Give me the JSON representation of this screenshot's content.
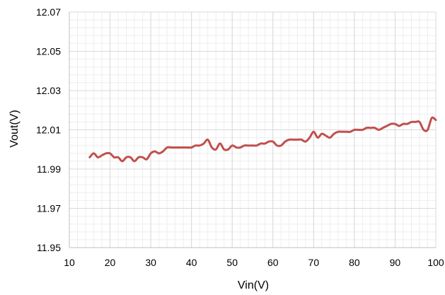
{
  "chart_data": {
    "type": "line",
    "title": "",
    "xlabel": "Vin(V)",
    "ylabel": "Vout(V)",
    "xlim": [
      10,
      100
    ],
    "ylim": [
      11.95,
      12.07
    ],
    "xticks": [
      10,
      20,
      30,
      40,
      50,
      60,
      70,
      80,
      90,
      100
    ],
    "yticks": [
      "11.95",
      "11.97",
      "11.99",
      "12.01",
      "12.03",
      "12.05",
      "12.07"
    ],
    "grid": {
      "major": true,
      "minor": true
    },
    "colors": {
      "line": "#c0504d",
      "major_grid": "#d9d9d9",
      "minor_grid": "#eeeeee",
      "axis": "#bfbfbf"
    },
    "series": [
      {
        "x": [
          15,
          16,
          17,
          18,
          19,
          20,
          21,
          22,
          23,
          24,
          25,
          26,
          27,
          28,
          29,
          30,
          31,
          32,
          33,
          34,
          35,
          36,
          37,
          38,
          39,
          40,
          41,
          42,
          43,
          44,
          45,
          46,
          47,
          48,
          49,
          50,
          51,
          52,
          53,
          54,
          55,
          56,
          57,
          58,
          59,
          60,
          61,
          62,
          63,
          64,
          65,
          66,
          67,
          68,
          69,
          70,
          71,
          72,
          73,
          74,
          75,
          76,
          77,
          78,
          79,
          80,
          81,
          82,
          83,
          84,
          85,
          86,
          87,
          88,
          89,
          90,
          91,
          92,
          93,
          94,
          95,
          96,
          97,
          98,
          99,
          100
        ],
        "y": [
          11.996,
          11.998,
          11.996,
          11.997,
          11.998,
          11.998,
          11.996,
          11.996,
          11.994,
          11.996,
          11.996,
          11.994,
          11.996,
          11.996,
          11.995,
          11.998,
          11.999,
          11.998,
          11.999,
          12.001,
          12.001,
          12.001,
          12.001,
          12.001,
          12.001,
          12.001,
          12.002,
          12.002,
          12.003,
          12.005,
          12.001,
          12.0,
          12.003,
          12.0,
          12.0,
          12.002,
          12.001,
          12.001,
          12.002,
          12.002,
          12.002,
          12.002,
          12.003,
          12.003,
          12.004,
          12.004,
          12.002,
          12.002,
          12.004,
          12.005,
          12.005,
          12.005,
          12.005,
          12.004,
          12.006,
          12.009,
          12.006,
          12.008,
          12.007,
          12.006,
          12.008,
          12.009,
          12.009,
          12.009,
          12.009,
          12.01,
          12.01,
          12.01,
          12.011,
          12.011,
          12.011,
          12.01,
          12.011,
          12.012,
          12.013,
          12.013,
          12.012,
          12.013,
          12.013,
          12.014,
          12.014,
          12.014,
          12.01,
          12.01,
          12.016,
          12.015
        ]
      }
    ]
  }
}
